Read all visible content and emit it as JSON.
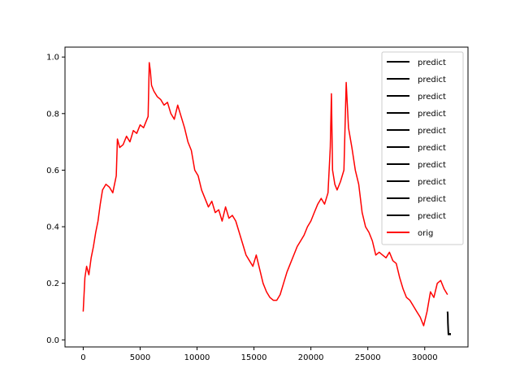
{
  "chart_data": {
    "type": "line",
    "title": "",
    "xlabel": "",
    "ylabel": "",
    "xlim": [
      -1600,
      33800
    ],
    "ylim": [
      -0.025,
      1.035
    ],
    "xticks": [
      0,
      5000,
      10000,
      15000,
      20000,
      25000,
      30000
    ],
    "xtick_labels": [
      "0",
      "5000",
      "10000",
      "15000",
      "20000",
      "25000",
      "30000"
    ],
    "yticks": [
      0.0,
      0.2,
      0.4,
      0.6,
      0.8,
      1.0
    ],
    "ytick_labels": [
      "0.0",
      "0.2",
      "0.4",
      "0.6",
      "0.8",
      "1.0"
    ],
    "grid": false,
    "legend_position": "top-right",
    "series": [
      {
        "name": "predict",
        "color": "#000000",
        "x": [
          32000,
          32020,
          32040,
          32060,
          32080,
          32100,
          32200,
          32300
        ],
        "y": [
          0.1,
          0.09,
          0.06,
          0.04,
          0.02,
          0.02,
          0.02,
          0.02
        ]
      },
      {
        "name": "predict",
        "color": "#000000",
        "x": [
          32040,
          32300
        ],
        "y": [
          0.02,
          0.02
        ]
      },
      {
        "name": "predict",
        "color": "#000000",
        "x": [
          32040,
          32300
        ],
        "y": [
          0.02,
          0.02
        ]
      },
      {
        "name": "predict",
        "color": "#000000",
        "x": [
          32040,
          32300
        ],
        "y": [
          0.02,
          0.02
        ]
      },
      {
        "name": "predict",
        "color": "#000000",
        "x": [
          32040,
          32300
        ],
        "y": [
          0.02,
          0.02
        ]
      },
      {
        "name": "predict",
        "color": "#000000",
        "x": [
          32040,
          32300
        ],
        "y": [
          0.02,
          0.02
        ]
      },
      {
        "name": "predict",
        "color": "#000000",
        "x": [
          32040,
          32300
        ],
        "y": [
          0.02,
          0.02
        ]
      },
      {
        "name": "predict",
        "color": "#000000",
        "x": [
          32040,
          32300
        ],
        "y": [
          0.02,
          0.02
        ]
      },
      {
        "name": "predict",
        "color": "#000000",
        "x": [
          32040,
          32300
        ],
        "y": [
          0.02,
          0.02
        ]
      },
      {
        "name": "predict",
        "color": "#000000",
        "x": [
          32040,
          32300
        ],
        "y": [
          0.02,
          0.02
        ]
      },
      {
        "name": "orig",
        "color": "#ff0000",
        "x": [
          0,
          150,
          300,
          500,
          700,
          900,
          1100,
          1300,
          1500,
          1700,
          2000,
          2300,
          2600,
          2900,
          3000,
          3200,
          3500,
          3800,
          4100,
          4400,
          4700,
          5000,
          5300,
          5500,
          5700,
          5800,
          5900,
          6000,
          6200,
          6500,
          6800,
          7100,
          7400,
          7700,
          8000,
          8300,
          8600,
          8900,
          9200,
          9500,
          9800,
          10100,
          10400,
          10700,
          11000,
          11300,
          11600,
          11900,
          12200,
          12500,
          12800,
          13100,
          13400,
          13700,
          14000,
          14300,
          14600,
          14900,
          15200,
          15500,
          15800,
          16100,
          16400,
          16700,
          17000,
          17300,
          17600,
          17900,
          18200,
          18500,
          18800,
          19100,
          19400,
          19700,
          20000,
          20300,
          20600,
          20900,
          21200,
          21500,
          21700,
          21800,
          21900,
          22100,
          22300,
          22600,
          22900,
          23100,
          23300,
          23600,
          23900,
          24200,
          24500,
          24800,
          25100,
          25400,
          25700,
          26000,
          26300,
          26600,
          26900,
          27200,
          27500,
          27800,
          28100,
          28400,
          28700,
          29000,
          29300,
          29600,
          29900,
          30200,
          30500,
          30800,
          31100,
          31400,
          31700,
          32000
        ],
        "y": [
          0.1,
          0.22,
          0.26,
          0.23,
          0.29,
          0.33,
          0.38,
          0.42,
          0.48,
          0.53,
          0.55,
          0.54,
          0.52,
          0.58,
          0.71,
          0.68,
          0.69,
          0.72,
          0.7,
          0.74,
          0.73,
          0.76,
          0.75,
          0.77,
          0.79,
          0.98,
          0.95,
          0.9,
          0.88,
          0.86,
          0.85,
          0.83,
          0.84,
          0.8,
          0.78,
          0.83,
          0.79,
          0.75,
          0.7,
          0.67,
          0.6,
          0.58,
          0.53,
          0.5,
          0.47,
          0.49,
          0.45,
          0.46,
          0.42,
          0.47,
          0.43,
          0.44,
          0.42,
          0.38,
          0.34,
          0.3,
          0.28,
          0.26,
          0.3,
          0.25,
          0.2,
          0.17,
          0.15,
          0.14,
          0.14,
          0.16,
          0.2,
          0.24,
          0.27,
          0.3,
          0.33,
          0.35,
          0.37,
          0.4,
          0.42,
          0.45,
          0.48,
          0.5,
          0.48,
          0.52,
          0.68,
          0.87,
          0.6,
          0.55,
          0.53,
          0.56,
          0.6,
          0.91,
          0.75,
          0.68,
          0.6,
          0.55,
          0.45,
          0.4,
          0.38,
          0.35,
          0.3,
          0.31,
          0.3,
          0.29,
          0.31,
          0.28,
          0.27,
          0.22,
          0.18,
          0.15,
          0.14,
          0.12,
          0.1,
          0.08,
          0.05,
          0.1,
          0.17,
          0.15,
          0.2,
          0.21,
          0.18,
          0.16
        ]
      }
    ]
  }
}
